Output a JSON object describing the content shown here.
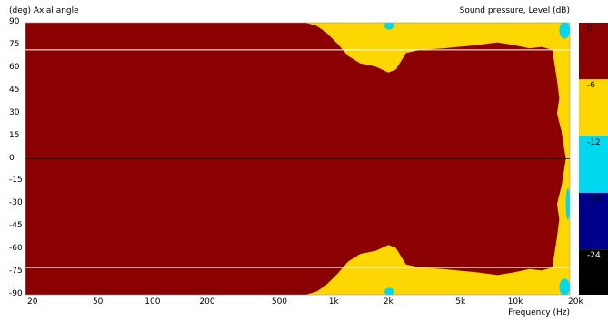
{
  "chart_data": {
    "type": "heatmap",
    "title": "",
    "ylabel": "(deg)  Axial angle",
    "xlabel": "Frequency  (Hz)",
    "colorbar_label": "Sound pressure, Level  (dB)",
    "x_scale": "log",
    "xlim": [
      20,
      20000
    ],
    "ylim": [
      -90,
      90
    ],
    "x_ticks": [
      {
        "value": 20,
        "label": "20"
      },
      {
        "value": 50,
        "label": "50"
      },
      {
        "value": 100,
        "label": "100"
      },
      {
        "value": 200,
        "label": "200"
      },
      {
        "value": 500,
        "label": "500"
      },
      {
        "value": 1000,
        "label": "1k"
      },
      {
        "value": 2000,
        "label": "2k"
      },
      {
        "value": 5000,
        "label": "5k"
      },
      {
        "value": 10000,
        "label": "10k"
      },
      {
        "value": 20000,
        "label": "20k"
      }
    ],
    "y_ticks": [
      90,
      75,
      60,
      45,
      30,
      15,
      0,
      -15,
      -30,
      -45,
      -60,
      -75,
      -90
    ],
    "y_tick_labels": [
      "90",
      "75",
      "60",
      "45",
      "30",
      "15",
      "0",
      "-15",
      "-30",
      "-45",
      "-60",
      "-75",
      "-90"
    ],
    "reference_lines_deg": [
      72,
      0,
      -72
    ],
    "colorbar": {
      "levels": [
        {
          "from": 0,
          "to": -6,
          "color": "#8b0000"
        },
        {
          "from": -6,
          "to": -12,
          "color": "#ffd700"
        },
        {
          "from": -12,
          "to": -18,
          "color": "#00d8f0"
        },
        {
          "from": -18,
          "to": -24,
          "color": "#00008b"
        },
        {
          "from": -24,
          "to": -30,
          "color": "#000000"
        }
      ],
      "tick_labels": [
        "0",
        "-6",
        "-12",
        "-18",
        "-24"
      ]
    },
    "contour_minus6dB_boundary": [
      {
        "freq": 20,
        "angle": 90
      },
      {
        "freq": 700,
        "angle": 90
      },
      {
        "freq": 800,
        "angle": 88
      },
      {
        "freq": 900,
        "angle": 84
      },
      {
        "freq": 1050,
        "angle": 76
      },
      {
        "freq": 1200,
        "angle": 68
      },
      {
        "freq": 1400,
        "angle": 63
      },
      {
        "freq": 1700,
        "angle": 61
      },
      {
        "freq": 2000,
        "angle": 57
      },
      {
        "freq": 2200,
        "angle": 59
      },
      {
        "freq": 2500,
        "angle": 70
      },
      {
        "freq": 3000,
        "angle": 72
      },
      {
        "freq": 4000,
        "angle": 73
      },
      {
        "freq": 6000,
        "angle": 75
      },
      {
        "freq": 8000,
        "angle": 77
      },
      {
        "freq": 10000,
        "angle": 75
      },
      {
        "freq": 12000,
        "angle": 73
      },
      {
        "freq": 14000,
        "angle": 74
      },
      {
        "freq": 16000,
        "angle": 72
      },
      {
        "freq": 17000,
        "angle": 52
      },
      {
        "freq": 17500,
        "angle": 40
      },
      {
        "freq": 17000,
        "angle": 30
      },
      {
        "freq": 18000,
        "angle": 18
      },
      {
        "freq": 19000,
        "angle": 0
      }
    ],
    "contour_minus12dB_patches": [
      {
        "freq_from": 1900,
        "freq_to": 2150,
        "angle_from": 86,
        "angle_to": 90
      },
      {
        "freq_from": 17500,
        "freq_to": 20000,
        "angle_from": 80,
        "angle_to": 90
      },
      {
        "freq_from": 1900,
        "freq_to": 2150,
        "angle_from": -90,
        "angle_to": -86
      },
      {
        "freq_from": 17500,
        "freq_to": 20000,
        "angle_from": -90,
        "angle_to": -80
      },
      {
        "freq_from": 19000,
        "freq_to": 20000,
        "angle_from": -40,
        "angle_to": -20
      }
    ]
  }
}
